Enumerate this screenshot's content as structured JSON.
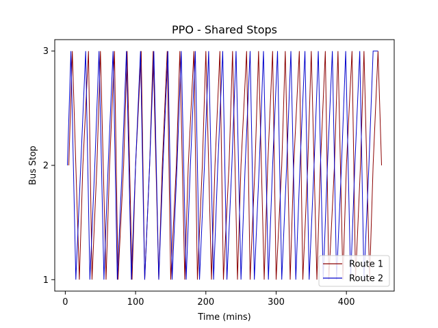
{
  "chart_data": {
    "type": "line",
    "title": "PPO - Shared Stops",
    "xlabel": "Time (mins)",
    "ylabel": "Bus Stop",
    "xlim": [
      -15,
      468
    ],
    "ylim": [
      0.9,
      3.1
    ],
    "xticks": [
      0,
      100,
      200,
      300,
      400
    ],
    "yticks": [
      1,
      2,
      3
    ],
    "grid": false,
    "legend": "bottom-right",
    "series": [
      {
        "name": "Route 1",
        "color": "#8b0000",
        "x": [
          5,
          10,
          20,
          25,
          33,
          38,
          45,
          50,
          58,
          63,
          70,
          75,
          83,
          88,
          95,
          100,
          108,
          113,
          120,
          125,
          133,
          138,
          145,
          150,
          158,
          163,
          170,
          175,
          183,
          188,
          195,
          200,
          208,
          213,
          220,
          225,
          233,
          238,
          245,
          250,
          258,
          263,
          270,
          275,
          283,
          288,
          295,
          300,
          308,
          313,
          320,
          325,
          333,
          338,
          345,
          350,
          358,
          363,
          370,
          375,
          383,
          388,
          395,
          400,
          408,
          413,
          420,
          425,
          433,
          438,
          445,
          450
        ],
        "y": [
          2,
          3,
          1,
          2,
          3,
          1,
          2,
          3,
          1,
          2,
          3,
          1,
          2,
          3,
          1,
          2,
          3,
          1,
          2,
          3,
          1,
          2,
          3,
          1,
          2,
          3,
          1,
          2,
          3,
          1,
          2,
          3,
          1,
          2,
          3,
          1,
          2,
          3,
          1,
          2,
          3,
          1,
          2,
          3,
          1,
          2,
          3,
          1,
          2,
          3,
          1,
          2,
          3,
          1,
          2,
          3,
          1,
          2,
          3,
          1,
          2,
          3,
          1,
          2,
          3,
          1,
          2,
          3,
          1,
          2,
          3,
          2
        ]
      },
      {
        "name": "Route 2",
        "color": "#0000cc",
        "x": [
          3,
          8,
          15,
          22,
          29,
          35,
          42,
          48,
          55,
          61,
          68,
          74,
          81,
          87,
          94,
          100,
          107,
          113,
          120,
          126,
          133,
          139,
          146,
          152,
          159,
          165,
          172,
          178,
          185,
          191,
          198,
          204,
          211,
          217,
          224,
          230,
          237,
          243,
          250,
          256,
          263,
          269,
          276,
          282,
          289,
          295,
          302,
          308,
          315,
          321,
          328,
          334,
          341,
          347,
          354,
          360,
          367,
          373,
          380,
          386,
          393,
          399,
          406,
          412,
          419,
          425,
          432,
          438,
          445
        ],
        "y": [
          2,
          3,
          1,
          2,
          3,
          1,
          2,
          3,
          1,
          2,
          3,
          1,
          2,
          3,
          1,
          2,
          3,
          1,
          2,
          3,
          1,
          2,
          3,
          1,
          2,
          3,
          1,
          2,
          3,
          1,
          2,
          3,
          1,
          2,
          3,
          1,
          2,
          3,
          1,
          2,
          3,
          1,
          2,
          3,
          1,
          2,
          3,
          1,
          2,
          3,
          1,
          2,
          3,
          1,
          2,
          3,
          1,
          2,
          3,
          1,
          2,
          3,
          1,
          2,
          3,
          1,
          2,
          3,
          3
        ]
      }
    ]
  }
}
